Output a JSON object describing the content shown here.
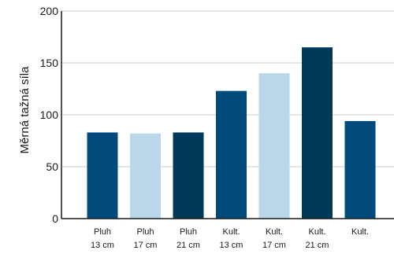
{
  "chart_data": {
    "type": "bar",
    "title": "",
    "xlabel": "",
    "ylabel": "Měrná tažná síla",
    "ylim": [
      0,
      200
    ],
    "yticks": [
      0,
      50,
      100,
      150,
      200
    ],
    "grid": "horizontal",
    "categories": [
      [
        "Pluh",
        "13 cm"
      ],
      [
        "Pluh",
        "17 cm"
      ],
      [
        "Pluh",
        "21 cm"
      ],
      [
        "Kult.",
        "13 cm"
      ],
      [
        "Kult.",
        "17 cm"
      ],
      [
        "Kult.",
        "21 cm"
      ],
      [
        "Kult.",
        ""
      ]
    ],
    "values": [
      83,
      82,
      83,
      123,
      140,
      165,
      94
    ],
    "colors": [
      "#004a7c",
      "#b9d7e8",
      "#013a59",
      "#004a7c",
      "#b9d7e8",
      "#013a59",
      "#004a7c"
    ]
  }
}
